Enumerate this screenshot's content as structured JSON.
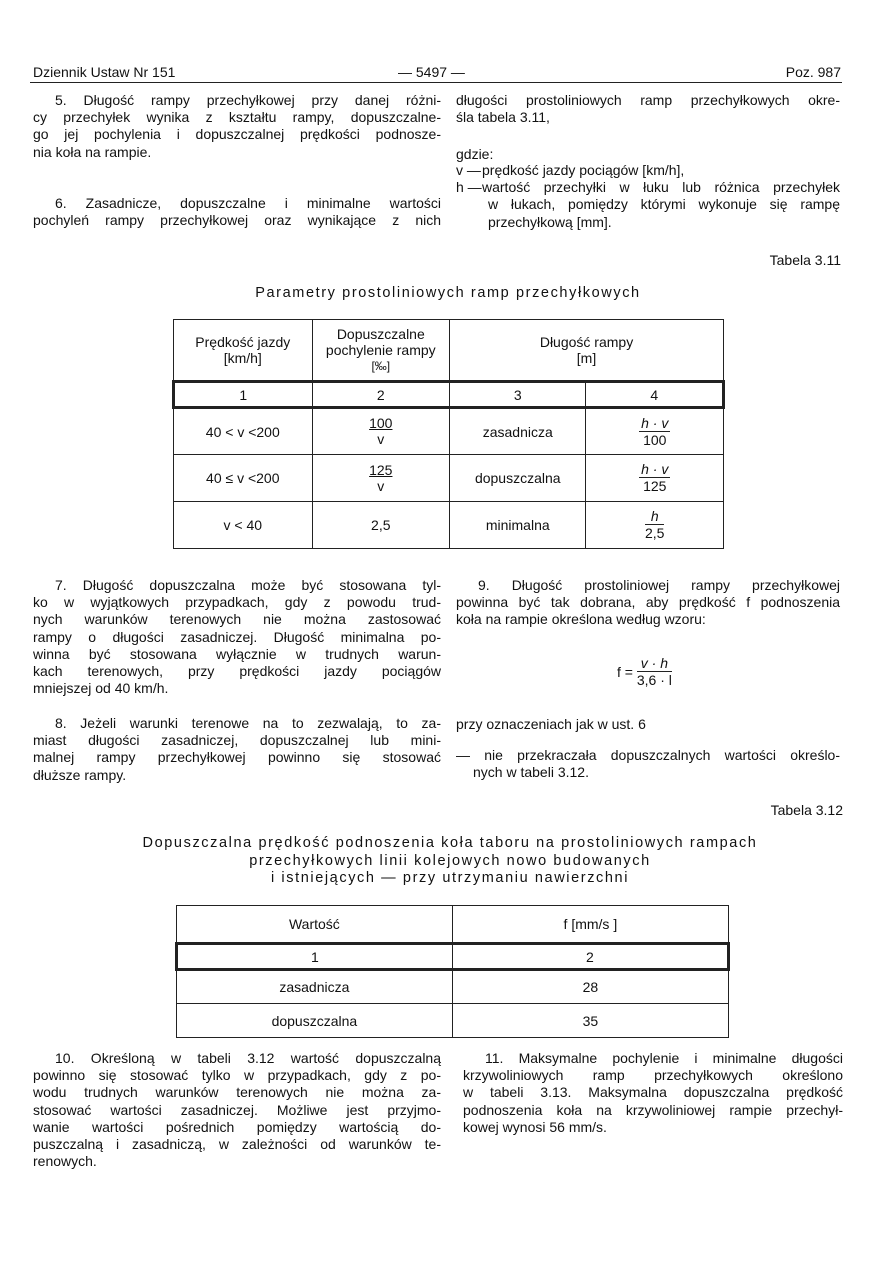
{
  "header": {
    "left": "Dziennik Ustaw Nr 151",
    "center": "— 5497 —",
    "right": "Poz. 987"
  },
  "p5": [
    "5. Długość rampy przechyłkowej przy danej różni-",
    "cy przechyłek wynika z kształtu rampy, dopuszczalne-",
    "go jej pochylenia i dopuszczalnej prędkości podnosze-",
    "nia koła na rampie."
  ],
  "p6": [
    "6. Zasadnicze, dopuszczalne i minimalne wartości",
    "pochyleń rampy przechyłkowej oraz wynikające z nich"
  ],
  "p6cont": [
    "długości prostoliniowych ramp przechyłkowych okre-",
    "śla tabela 3.11,"
  ],
  "gdzie": "gdzie:",
  "defs": [
    {
      "sym": "v —",
      "lines": [
        "prędkość jazdy pociągów [km/h],"
      ]
    },
    {
      "sym": "h —",
      "lines": [
        "wartość przechyłki w łuku lub różnica przechyłek",
        "w łukach, pomiędzy  którymi wykonuje się rampę",
        "przechyłkową [mm]."
      ]
    }
  ],
  "t311": {
    "label": "Tabela 3.11",
    "title": "Parametry prostoliniowych ramp przechyłkowych",
    "headers": [
      [
        "Prędkość jazdy",
        "[km/h]"
      ],
      [
        "Dopuszczalne",
        "pochylenie rampy",
        "[‰]"
      ],
      [
        "Długość rampy",
        "[m]"
      ]
    ],
    "numbers": [
      "1",
      "2",
      "3",
      "4"
    ],
    "rows": [
      {
        "speed": "40 < v <200",
        "slope_num": "100",
        "slope_den": "v",
        "type": "zasadnicza",
        "len_num": "h · v",
        "len_den": "100"
      },
      {
        "speed": "40 ≤ v <200",
        "slope_num": "125",
        "slope_den": "v",
        "type": "dopuszczalna",
        "len_num": "h · v",
        "len_den": "125"
      },
      {
        "speed": "v < 40",
        "slope": "2,5",
        "type": "minimalna",
        "len_num": "h",
        "len_den": "2,5"
      }
    ]
  },
  "p7": [
    "7. Długość dopuszczalna może być stosowana tyl-",
    "ko w wyjątkowych przypadkach, gdy z powodu trud-",
    "nych warunków terenowych nie można zastosować",
    "rampy o długości zasadniczej. Długość minimalna po-",
    "winna być stosowana wyłącznie w trudnych warun-",
    "kach terenowych, przy prędkości jazdy pociągów",
    "mniejszej od 40 km/h."
  ],
  "p8": [
    "8. Jeżeli warunki terenowe na to zezwalają, to za-",
    "miast długości zasadniczej, dopuszczalnej lub mini-",
    "malnej rampy przechyłkowej powinno się stosować",
    "dłuższe rampy."
  ],
  "p9": [
    "9. Długość prostoliniowej rampy przechyłkowej",
    "powinna być tak dobrana, aby prędkość f podnoszenia",
    "koła na rampie określona według wzoru:"
  ],
  "formula": {
    "lhs": "f =",
    "num": "v · h",
    "den": "3,6 · l"
  },
  "p9b": "przy oznaczeniach jak w ust. 6",
  "p9c": [
    "— nie przekraczała dopuszczalnych wartości określo-",
    "nych w tabeli 3.12."
  ],
  "t312": {
    "label": "Tabela 3.12",
    "title": [
      "Dopuszczalna prędkość podnoszenia koła taboru na prostoliniowych rampach",
      "przechyłkowych linii kolejowych nowo budowanych",
      "i istniejących — przy utrzymaniu nawierzchni"
    ],
    "headers": [
      "Wartość",
      "f [mm/s ]"
    ],
    "numbers": [
      "1",
      "2"
    ],
    "rows": [
      [
        "zasadnicza",
        "28"
      ],
      [
        "dopuszczalna",
        "35"
      ]
    ]
  },
  "p10": [
    "10. Określoną w tabeli 3.12 wartość dopuszczalną",
    "powinno się stosować tylko w przypadkach, gdy z po-",
    "wodu trudnych warunków terenowych nie można za-",
    "stosować wartości zasadniczej. Możliwe jest przyjmo-",
    "wanie wartości pośrednich pomiędzy wartością do-",
    "puszczalną i zasadniczą, w zależności od warunków te-",
    "renowych."
  ],
  "p11": [
    "11. Maksymalne pochylenie i minimalne długości",
    "krzywoliniowych ramp przechyłkowych określono",
    "w tabeli 3.13. Maksymalna dopuszczalna prędkość",
    "podnoszenia koła na krzywoliniowej rampie przechył-",
    "kowej wynosi 56 mm/s."
  ]
}
